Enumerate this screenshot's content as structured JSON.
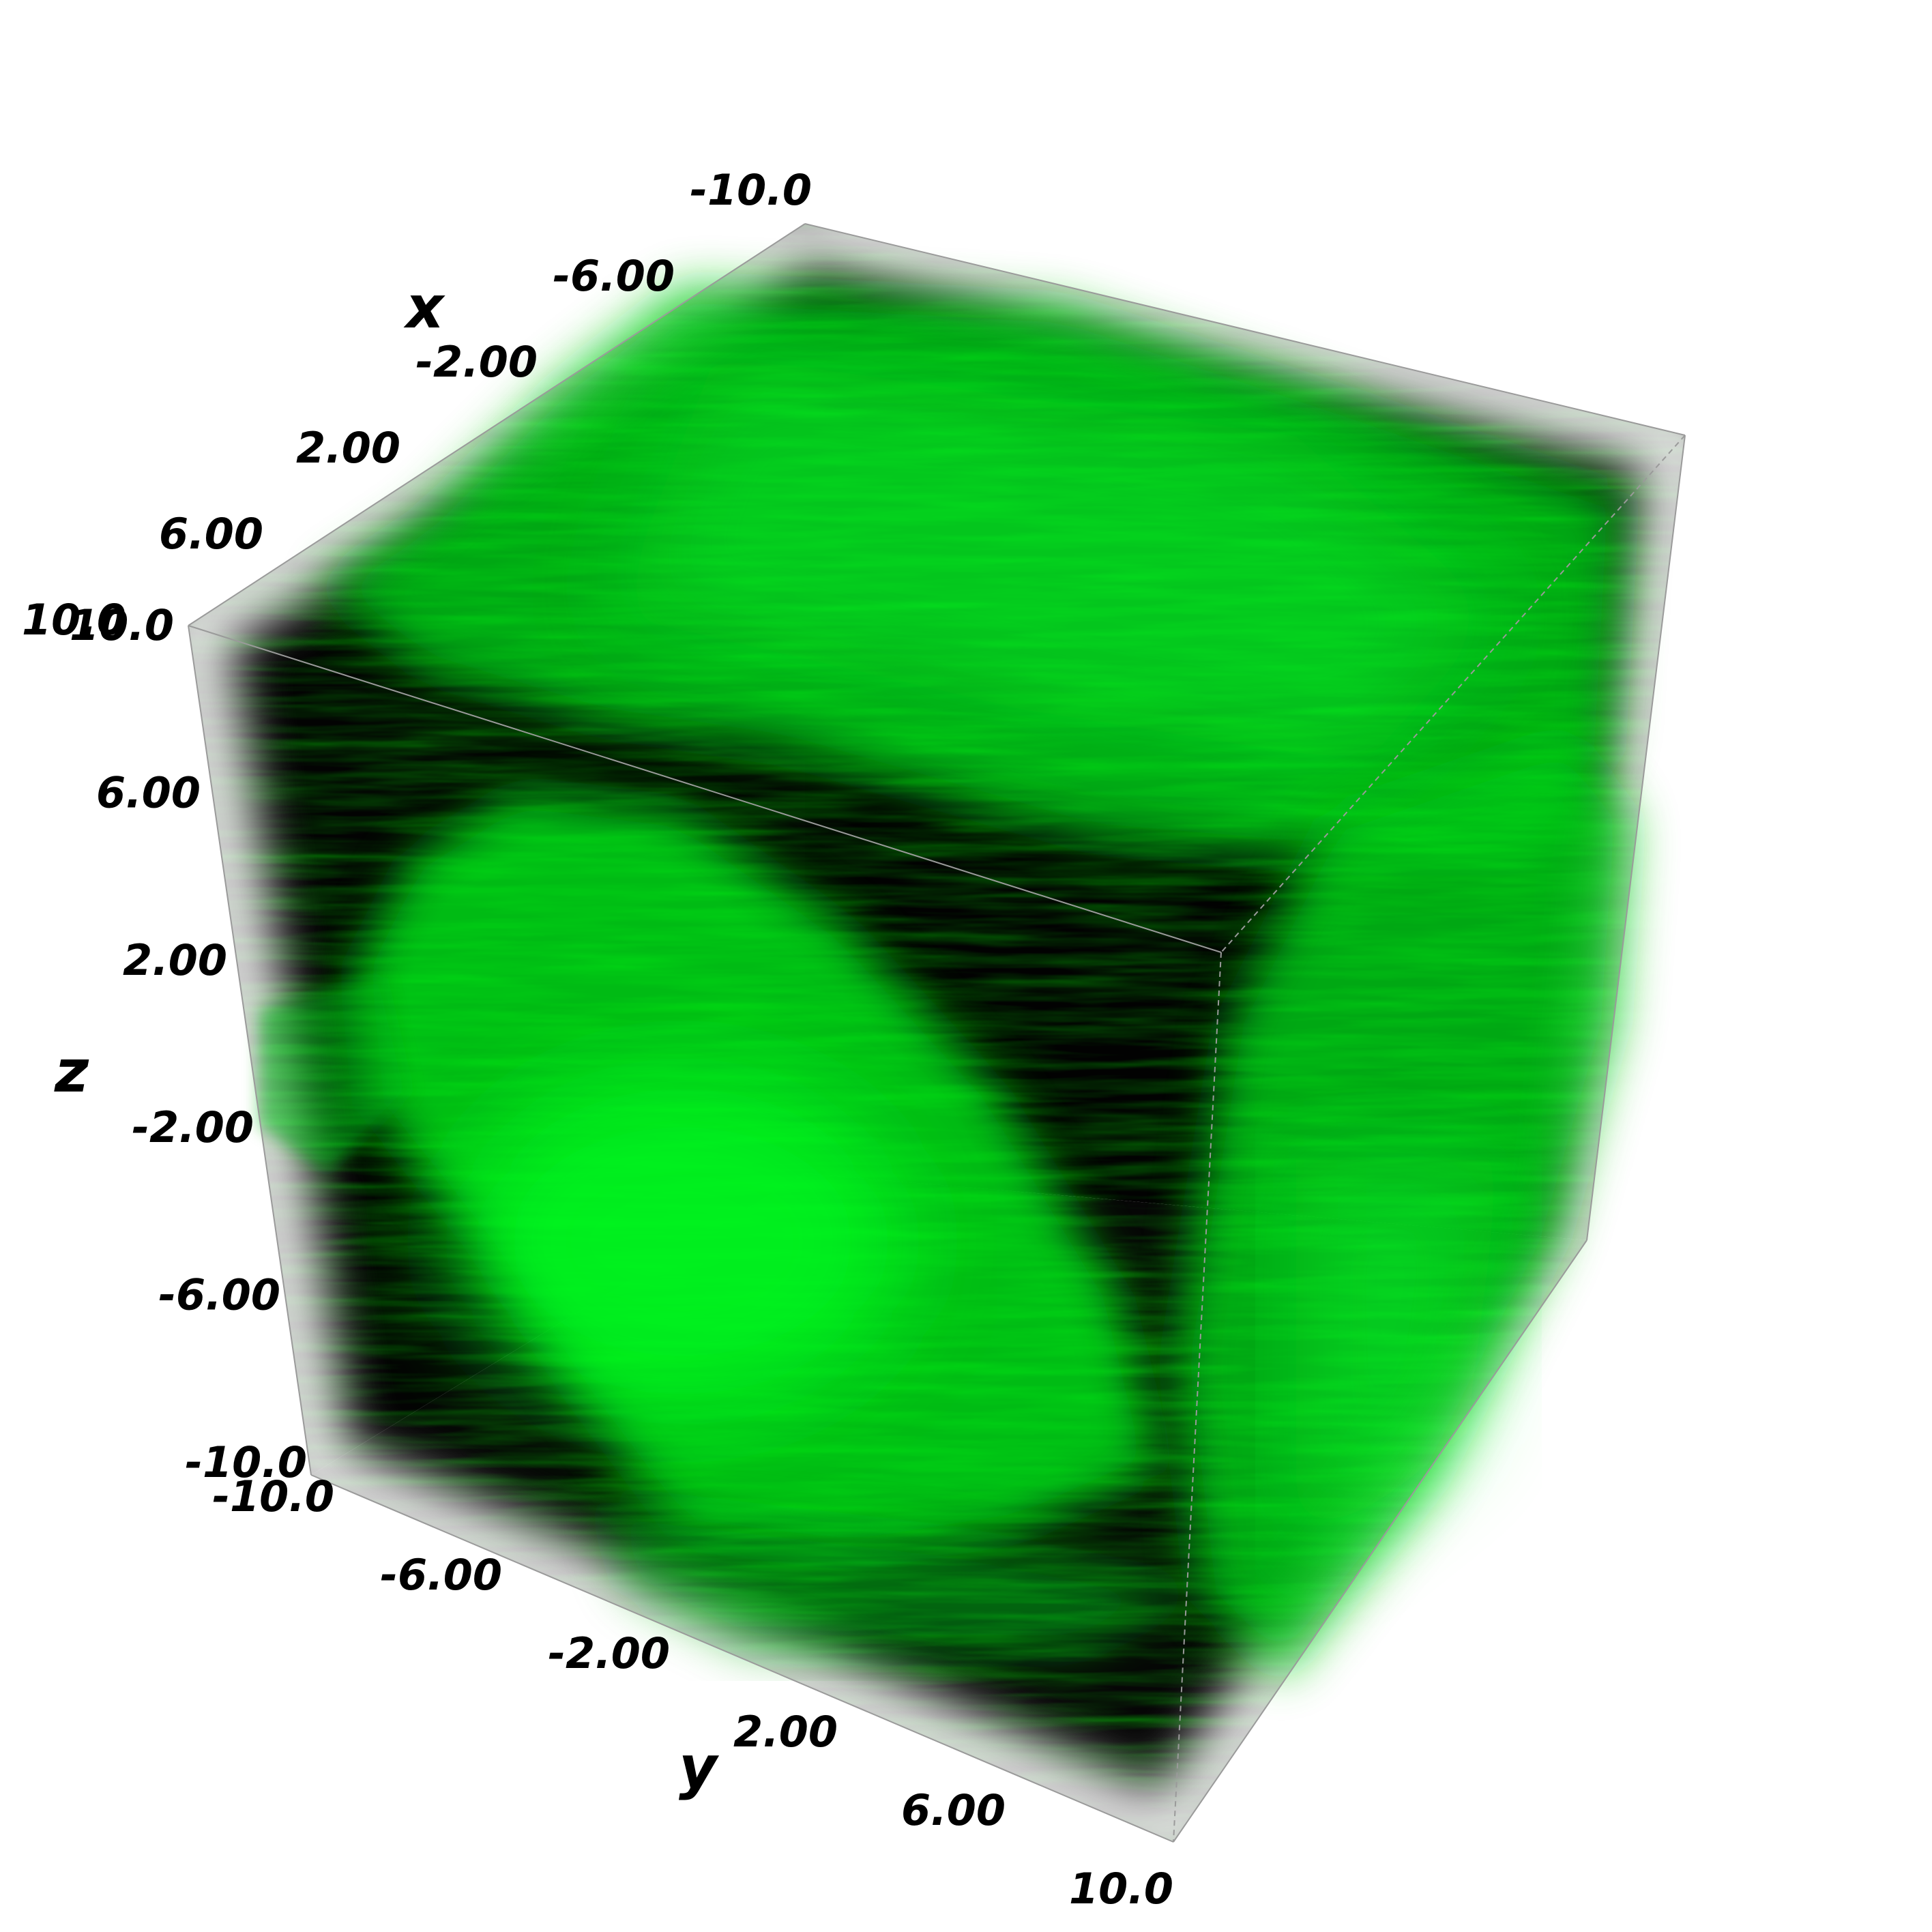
{
  "chart_data": {
    "type": "volume-render",
    "colormap_color": "#00e51a",
    "background": "#000000",
    "axes": {
      "x": {
        "label": "x",
        "range": [
          -10,
          10
        ],
        "ticks": [
          -10,
          -6,
          -2,
          2,
          6,
          10
        ],
        "tick_labels": [
          "-10.0",
          "-6.00",
          "-2.00",
          "2.00",
          "6.00",
          "10.0"
        ]
      },
      "y": {
        "label": "y",
        "range": [
          -10,
          10
        ],
        "ticks": [
          -10,
          -6,
          -2,
          2,
          6,
          10
        ],
        "tick_labels": [
          "-10.0",
          "-6.00",
          "-2.00",
          "2.00",
          "6.00",
          "10.0"
        ]
      },
      "z": {
        "label": "z",
        "range": [
          -10,
          10
        ],
        "ticks": [
          10,
          6,
          2,
          -2,
          -6,
          -10
        ],
        "tick_labels": [
          "10.0",
          "6.00",
          "2.00",
          "-2.00",
          "-6.00",
          "-10.0"
        ]
      }
    }
  }
}
